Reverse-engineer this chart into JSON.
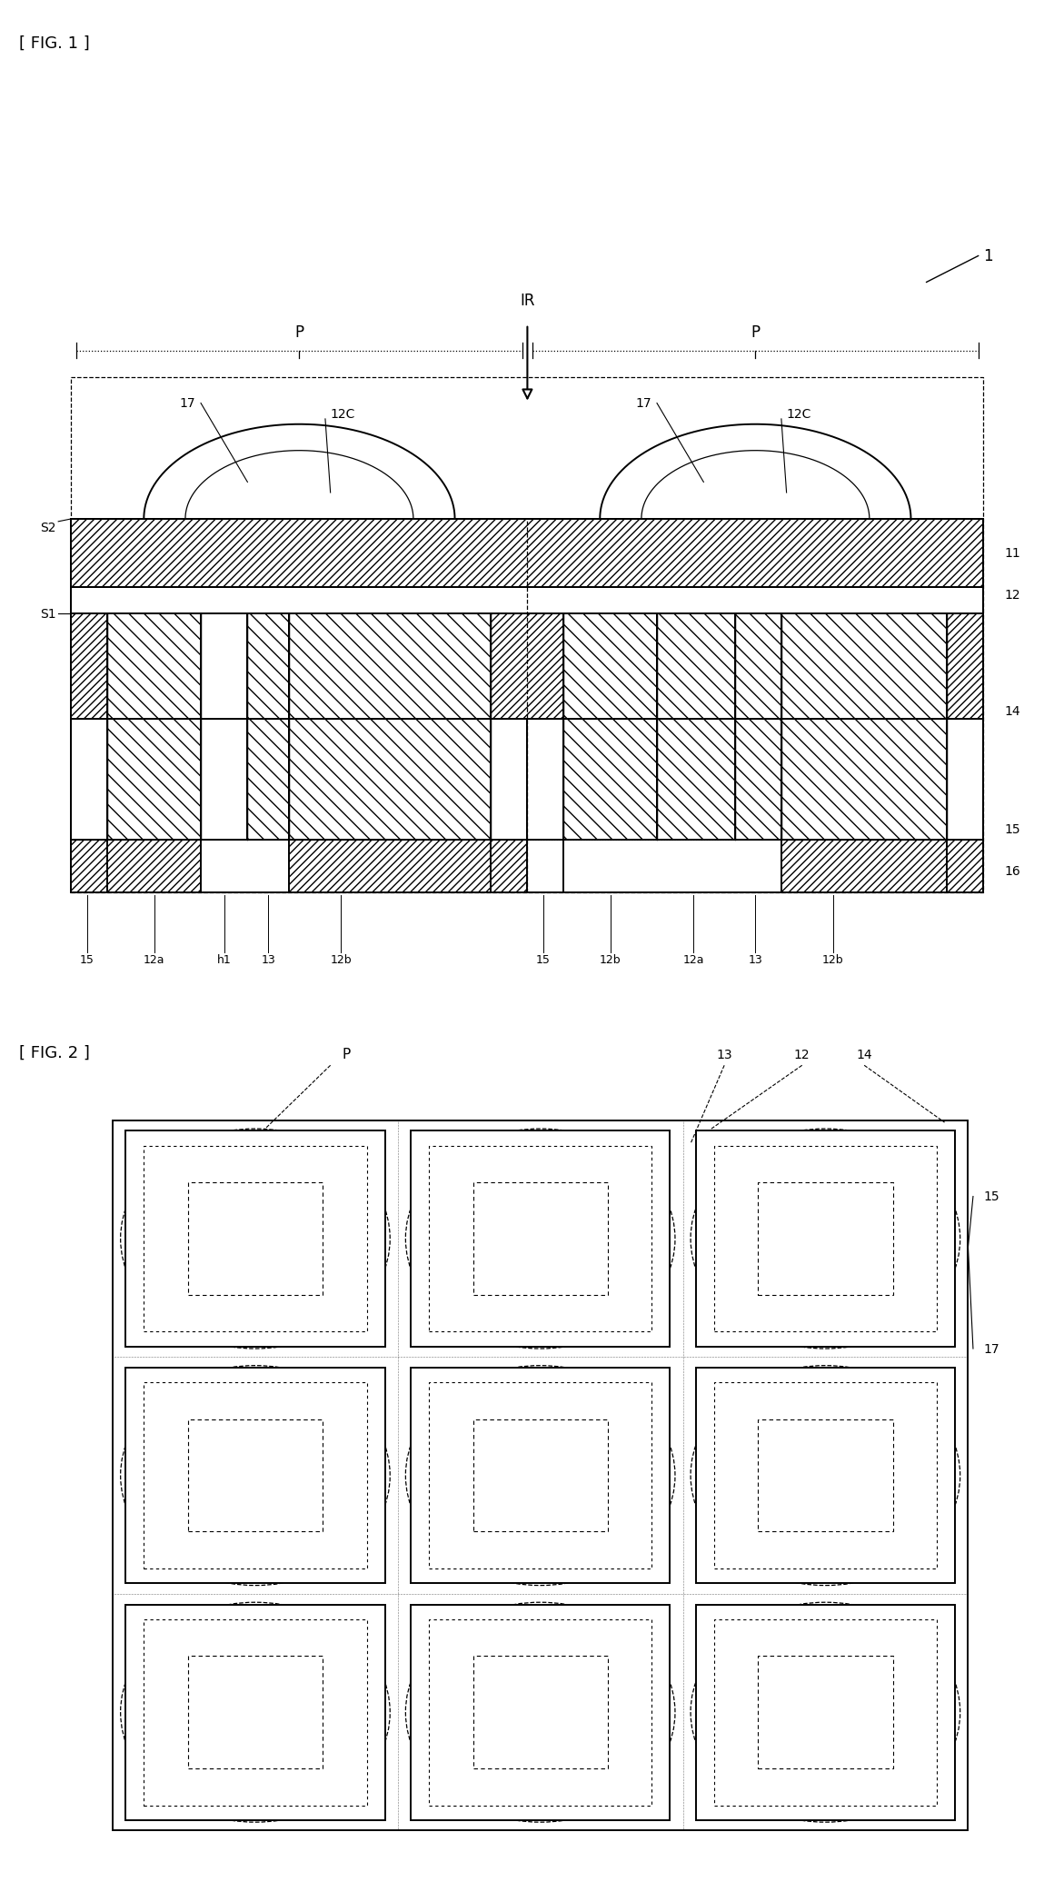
{
  "fig_width": 12.4,
  "fig_height": 21.15,
  "bg_color": "#ffffff",
  "lc": "#000000",
  "fig1_label": "[ FIG. 1 ]",
  "fig2_label": "[ FIG. 2 ]"
}
